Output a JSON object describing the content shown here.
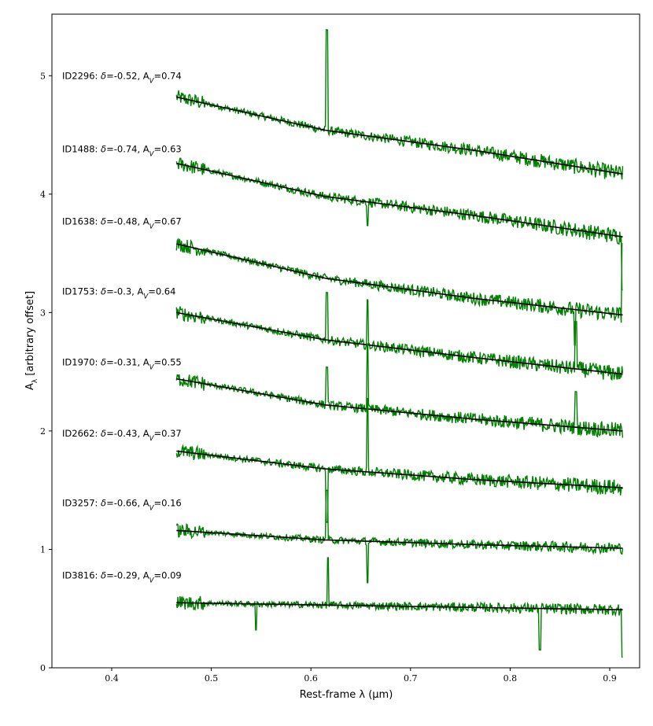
{
  "chart_data": {
    "type": "line",
    "title": "",
    "xlabel": "Rest-frame λ (μm)",
    "ylabel": "A_λ [arbitrary offset]",
    "xlim": [
      0.34,
      0.93
    ],
    "ylim": [
      0,
      5.52
    ],
    "x_ticks": [
      0.4,
      0.5,
      0.6,
      0.7,
      0.8,
      0.9
    ],
    "y_ticks": [
      0,
      1,
      2,
      3,
      4,
      5
    ],
    "x_range": [
      0.465,
      0.913
    ],
    "colors": {
      "observed": "#008000",
      "model": "#000000"
    },
    "legend": "none",
    "grid": false,
    "series": [
      {
        "id": "ID2296",
        "delta": "-0.52",
        "av": "0.74",
        "label_y": 5.0,
        "model": [
          4.82,
          4.54,
          4.37,
          4.17
        ],
        "spike_x": [
          0.616
        ],
        "spike_h": [
          0.85
        ]
      },
      {
        "id": "ID1488",
        "delta": "-0.74",
        "av": "0.63",
        "label_y": 4.38,
        "model": [
          4.26,
          3.98,
          3.82,
          3.64
        ],
        "spike_x": [
          0.657,
          0.913
        ],
        "spike_h": [
          -0.2,
          -0.45
        ]
      },
      {
        "id": "ID1638",
        "delta": "-0.48",
        "av": "0.67",
        "label_y": 3.77,
        "model": [
          3.58,
          3.29,
          3.12,
          2.98
        ],
        "spike_x": [
          0.865,
          0.913
        ],
        "spike_h": [
          -0.3,
          0.6
        ]
      },
      {
        "id": "ID1753",
        "delta": "-0.3",
        "av": "0.64",
        "label_y": 3.18,
        "model": [
          3.0,
          2.77,
          2.62,
          2.48
        ],
        "spike_x": [
          0.616,
          0.657,
          0.866
        ],
        "spike_h": [
          0.4,
          0.38,
          0.4
        ]
      },
      {
        "id": "ID1970",
        "delta": "-0.31",
        "av": "0.55",
        "label_y": 2.58,
        "model": [
          2.44,
          2.22,
          2.1,
          2.0
        ],
        "spike_x": [
          0.616,
          0.657,
          0.866
        ],
        "spike_h": [
          0.32,
          0.55,
          0.3
        ]
      },
      {
        "id": "ID2662",
        "delta": "-0.43",
        "av": "0.37",
        "label_y": 1.98,
        "model": [
          1.83,
          1.68,
          1.59,
          1.52
        ],
        "spike_x": [
          0.616,
          0.657
        ],
        "spike_h": [
          -0.45,
          0.62
        ]
      },
      {
        "id": "ID3257",
        "delta": "-0.66",
        "av": "0.16",
        "label_y": 1.39,
        "model": [
          1.16,
          1.08,
          1.04,
          1.01
        ],
        "spike_x": [
          0.616,
          0.657
        ],
        "spike_h": [
          0.42,
          -0.35
        ]
      },
      {
        "id": "ID3816",
        "delta": "-0.29",
        "av": "0.09",
        "label_y": 0.78,
        "model": [
          0.55,
          0.53,
          0.51,
          0.49
        ],
        "spike_x": [
          0.617,
          0.545,
          0.83,
          0.913
        ],
        "spike_h": [
          0.4,
          -0.22,
          -0.35,
          -0.4
        ]
      }
    ]
  }
}
